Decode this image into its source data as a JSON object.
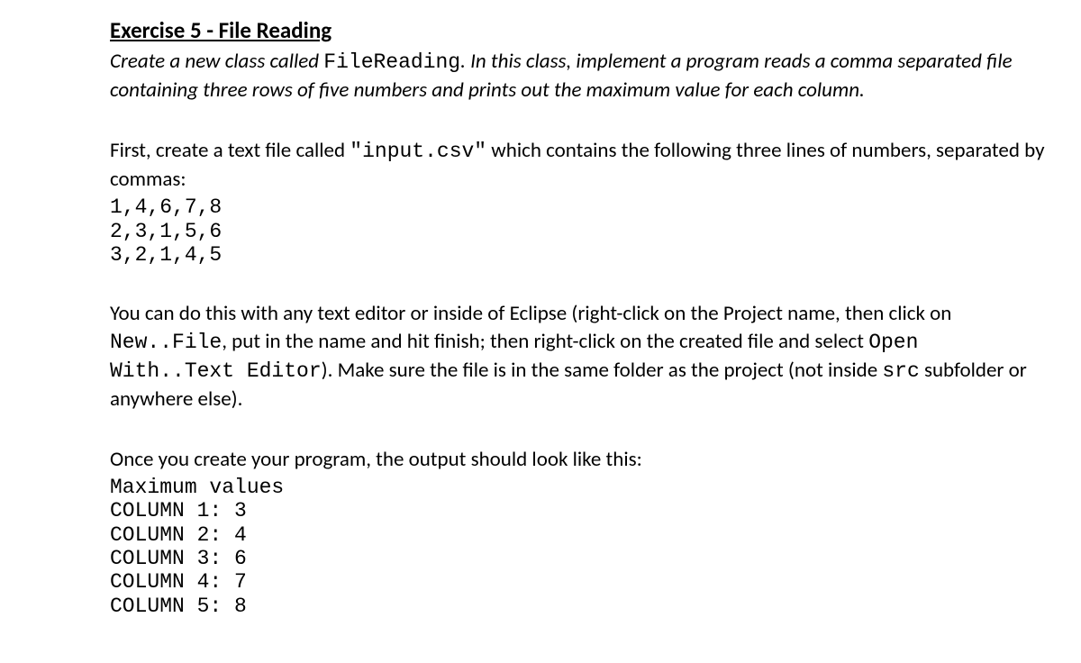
{
  "heading": "Exercise 5 - File Reading",
  "intro_part1": "Create a new class called ",
  "intro_code": "FileReading",
  "intro_part2": ". In this class, implement a program reads a comma separated file containing three rows of five numbers and prints out the maximum value for each column.",
  "para2_part1": "First, create a text file called ",
  "para2_code": "\"input.csv\"",
  "para2_part2": " which contains the following three lines of numbers, separated by commas:",
  "csv_data": "1,4,6,7,8\n2,3,1,5,6\n3,2,1,4,5",
  "para3_part1": "You can do this with any text editor or inside of Eclipse (right-click on the Project name, then click on ",
  "para3_code1": "New..File",
  "para3_part2": ", put in the name and hit finish; then right-click on the created file and select ",
  "para3_code2": "Open With..Text Editor",
  "para3_part3": "). Make sure the file is in the same folder as the project (not inside ",
  "para3_code3": "src",
  "para3_part4": " subfolder or anywhere else).",
  "para4": "Once you create your program, the output should look like this:",
  "output_block": "Maximum values\nCOLUMN 1: 3\nCOLUMN 2: 4\nCOLUMN 3: 6\nCOLUMN 4: 7\nCOLUMN 5: 8"
}
